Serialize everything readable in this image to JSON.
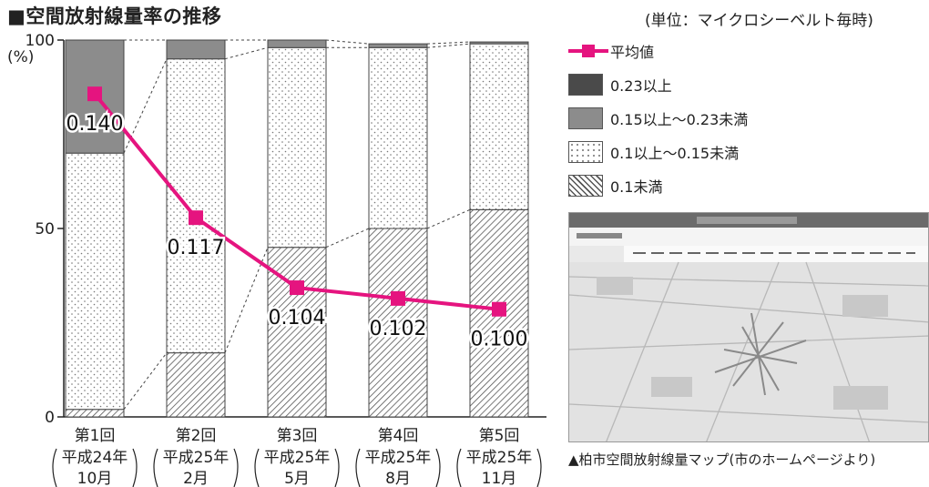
{
  "title": "■空間放射線量率の推移",
  "unit_note": "(単位：マイクロシーベルト毎時)",
  "chart_data": {
    "type": "bar",
    "stacked": true,
    "y_ticks": [
      "100",
      "50",
      "0"
    ],
    "y_unit": "(%)",
    "ylim": [
      0,
      100
    ],
    "categories": [
      {
        "l1": "第1回",
        "l2": "平成24年",
        "l3": "10月"
      },
      {
        "l1": "第2回",
        "l2": "平成25年",
        "l3": "2月"
      },
      {
        "l1": "第3回",
        "l2": "平成25年",
        "l3": "5月"
      },
      {
        "l1": "第4回",
        "l2": "平成25年",
        "l3": "8月"
      },
      {
        "l1": "第5回",
        "l2": "平成25年",
        "l3": "11月"
      }
    ],
    "series": [
      {
        "name": "0.1未満",
        "values": [
          2,
          17,
          45,
          50,
          55
        ]
      },
      {
        "name": "0.1以上～0.15未満",
        "values": [
          68,
          78,
          53,
          48,
          44
        ]
      },
      {
        "name": "0.15以上～0.23未満",
        "values": [
          30,
          5,
          2,
          1,
          0.5
        ]
      },
      {
        "name": "0.23以上",
        "values": [
          0,
          0,
          0,
          0,
          0
        ]
      }
    ],
    "line": {
      "name": "平均値",
      "values": [
        0.14,
        0.117,
        0.104,
        0.102,
        0.1
      ],
      "labels": [
        "0.140",
        "0.117",
        "0.104",
        "0.102",
        "0.100"
      ],
      "color": "#e5147f"
    }
  },
  "legend": [
    {
      "key": "line",
      "label": "平均値"
    },
    {
      "key": "s3",
      "label": "0.23以上"
    },
    {
      "key": "s2",
      "label": "0.15以上～0.23未満"
    },
    {
      "key": "s1",
      "label": "0.1以上～0.15未満"
    },
    {
      "key": "s0",
      "label": "0.1未満"
    }
  ],
  "map_caption": "▲柏市空間放射線量マップ(市のホームページより)"
}
